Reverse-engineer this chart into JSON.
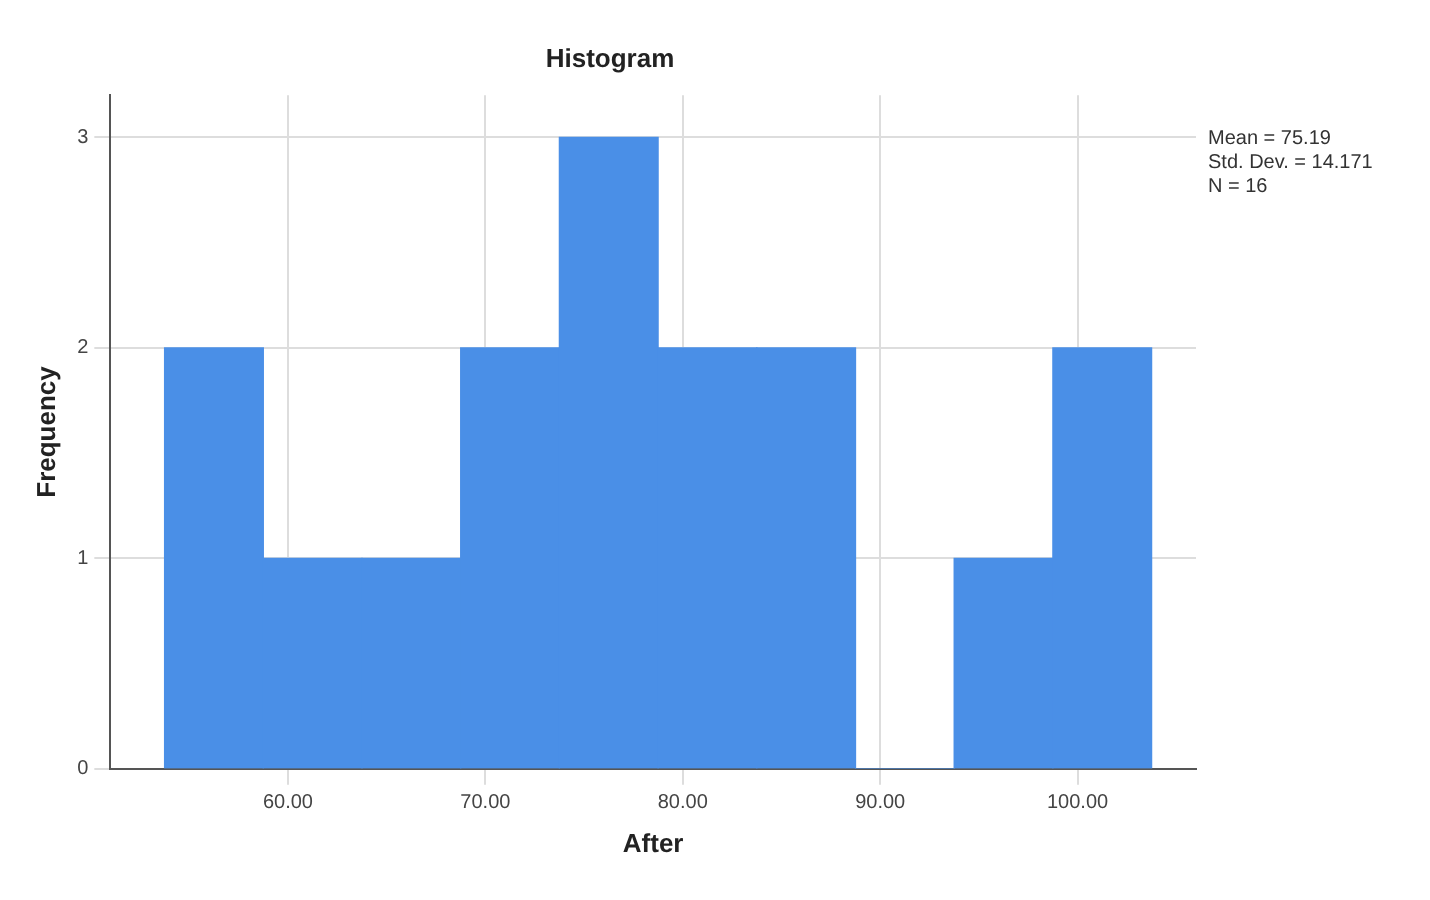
{
  "chart_data": {
    "type": "histogram",
    "title": "Histogram",
    "xlabel": "After",
    "ylabel": "Frequency",
    "bins": [
      53.75,
      58.75,
      63.75,
      68.75,
      73.75,
      78.75,
      83.75,
      88.75,
      93.75,
      98.75,
      103.75
    ],
    "values": [
      2,
      1,
      1,
      2,
      3,
      2,
      2,
      0,
      1,
      2
    ],
    "color": "#4a8fe7",
    "xlim": [
      51,
      106
    ],
    "xticks": [
      {
        "value": 60,
        "label": "60.00"
      },
      {
        "value": 70,
        "label": "70.00"
      },
      {
        "value": 80,
        "label": "80.00"
      },
      {
        "value": 90,
        "label": "90.00"
      },
      {
        "value": 100,
        "label": "100.00"
      }
    ],
    "ylim": [
      0,
      3.2
    ],
    "yticks": [
      0,
      1,
      2,
      3
    ],
    "grid": true,
    "annotations": [
      "Mean = 75.19",
      "Std. Dev. = 14.171",
      "N = 16"
    ]
  }
}
